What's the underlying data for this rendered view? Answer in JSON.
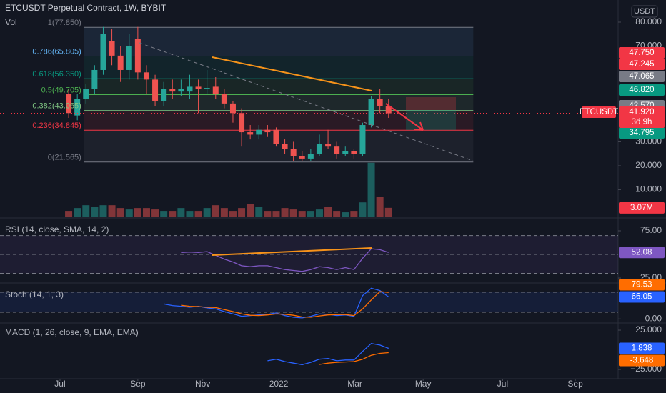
{
  "chart_data": [
    {
      "type": "candlestick",
      "title": "ETCUSDT Perpetual Contract, 1W, BYBIT",
      "currency": "USDT",
      "x": [
        1,
        2,
        3,
        4,
        5,
        6,
        7,
        8,
        9,
        10,
        11,
        12,
        13,
        14,
        15,
        16,
        17,
        18,
        19,
        20,
        21,
        22,
        23,
        24,
        25,
        26,
        27,
        28,
        29,
        30,
        31,
        32,
        33,
        34,
        35,
        36,
        37,
        38
      ],
      "open": [
        50,
        41,
        48,
        52,
        60,
        72,
        66,
        60,
        73,
        59,
        56,
        47,
        52,
        51,
        51,
        53,
        52,
        53,
        50,
        46,
        42,
        34,
        33,
        35,
        35,
        29,
        27,
        24,
        23,
        25,
        29,
        28,
        25,
        26,
        25,
        37,
        48,
        45
      ],
      "high": [
        52,
        50,
        54,
        62,
        78,
        77,
        70,
        75,
        78,
        62,
        58,
        55,
        56,
        56,
        58,
        56,
        60,
        57,
        52,
        47,
        44,
        37,
        37,
        37,
        36,
        31,
        30,
        26,
        27,
        33,
        35,
        30,
        28,
        27,
        38,
        49,
        52,
        48
      ],
      "low": [
        40,
        39,
        46,
        50,
        58,
        62,
        55,
        56,
        56,
        50,
        45,
        45,
        48,
        49,
        48,
        42,
        50,
        48,
        44,
        38,
        28,
        31,
        31,
        32,
        28,
        25,
        22,
        22,
        22,
        24,
        27,
        23,
        24,
        23,
        24,
        36,
        42,
        40
      ],
      "close": [
        42,
        48,
        52,
        60,
        75,
        66,
        60,
        70,
        59,
        56,
        47,
        52,
        51,
        52,
        53,
        52,
        52.5,
        50,
        46,
        42,
        34,
        33,
        35,
        34,
        29,
        27,
        24,
        23,
        25,
        29,
        28,
        25,
        26,
        25,
        37,
        48,
        45,
        41.92
      ],
      "up_color": "#26a69a",
      "down_color": "#ef5350",
      "xlim": [
        -6.94,
        64.55
      ],
      "xticks": [
        {
          "value": 0,
          "label": "Jul"
        },
        {
          "value": 9,
          "label": "Sep"
        },
        {
          "value": 16.5,
          "label": "Nov"
        },
        {
          "value": 25.3,
          "label": "2022"
        },
        {
          "value": 34.1,
          "label": "Mar"
        },
        {
          "value": 42,
          "label": "May"
        },
        {
          "value": 51.2,
          "label": "Jul"
        },
        {
          "value": 59.6,
          "label": "Sep"
        }
      ],
      "ylim": [
        -1.8,
        89.25
      ],
      "yticks": [
        {
          "value": 80,
          "label": "80.000"
        },
        {
          "value": 70,
          "label": "70.000"
        },
        {
          "value": 30,
          "label": "30.000"
        },
        {
          "value": 20,
          "label": "20.000"
        },
        {
          "value": 10,
          "label": "10.000"
        }
      ],
      "fib_x": [
        2.8,
        47.8
      ],
      "fib_levels": [
        {
          "value": 77.85,
          "label": "1(77.850)",
          "color": "#787b86"
        },
        {
          "value": 65.805,
          "label": "0.786(65.805)",
          "color": "#64b5f6"
        },
        {
          "value": 56.35,
          "label": "0.618(56.350)",
          "color": "#089981"
        },
        {
          "value": 49.705,
          "label": "0.5(49.705)",
          "color": "#4caf50"
        },
        {
          "value": 43.065,
          "label": "0.382(43.065)",
          "color": "#81c784"
        },
        {
          "value": 34.845,
          "label": "0.236(34.845)",
          "color": "#f23645"
        },
        {
          "value": 21.565,
          "label": "0(21.565)",
          "color": "#787b86"
        }
      ],
      "price_tags": [
        {
          "label": "47.750",
          "color": "#f23645"
        },
        {
          "label": "47.245",
          "color": "#f23645"
        },
        {
          "label": "47.065",
          "color": "#787b86"
        },
        {
          "label": "46.820",
          "color": "#089981"
        },
        {
          "label": "42.570",
          "color": "#787b86"
        },
        {
          "label": "34.795",
          "color": "#089981"
        }
      ],
      "last_tag": {
        "symbol": "ETCUSDT",
        "price": "41.920",
        "countdown": "3d 9h",
        "color": "#f23645"
      }
    },
    {
      "type": "bar",
      "title": "Vol",
      "x": [
        1,
        2,
        3,
        4,
        5,
        6,
        7,
        8,
        9,
        10,
        11,
        12,
        13,
        14,
        15,
        16,
        17,
        18,
        19,
        20,
        21,
        22,
        23,
        24,
        25,
        26,
        27,
        28,
        29,
        30,
        31,
        32,
        33,
        34,
        35,
        36,
        37,
        38
      ],
      "values": [
        2,
        3,
        4,
        3.5,
        4,
        4,
        3,
        2.5,
        3,
        3,
        2.5,
        2,
        2,
        3,
        2,
        2,
        3,
        4,
        3,
        2,
        3,
        4.5,
        3.5,
        2,
        2,
        3,
        2.5,
        2,
        2,
        2.5,
        3.5,
        2,
        1.5,
        2,
        5,
        19,
        7,
        3.07
      ],
      "value_labels": [
        null,
        null,
        null,
        null,
        null,
        null,
        null,
        null,
        null,
        null,
        null,
        null,
        null,
        null,
        null,
        null,
        null,
        null,
        null,
        null,
        null,
        null,
        null,
        null,
        null,
        null,
        null,
        null,
        null,
        null,
        null,
        null,
        null,
        null,
        null,
        null,
        null,
        "3.07M"
      ],
      "up_color": "#26a69a",
      "down_color": "#ef5350",
      "tag_color": "#f23645",
      "ylim": [
        0,
        24
      ]
    },
    {
      "type": "line",
      "title": "RSI (14, close, SMA, 14, 2)",
      "x": [
        1,
        2,
        3,
        4,
        5,
        6,
        7,
        8,
        9,
        10,
        11,
        12,
        13,
        14,
        15,
        16,
        17,
        18,
        19,
        20,
        21,
        22,
        23,
        24,
        25,
        26,
        27,
        28,
        29,
        30,
        31,
        32,
        33,
        34,
        35,
        36,
        37,
        38
      ],
      "series": [
        {
          "color": "#7e57c2",
          "values": [
            null,
            null,
            null,
            null,
            null,
            null,
            null,
            null,
            null,
            null,
            null,
            null,
            null,
            52,
            52.5,
            52,
            53,
            49,
            45,
            42,
            38,
            37,
            38,
            38,
            36,
            34,
            33,
            32,
            34,
            37,
            36,
            34,
            36,
            34,
            46,
            56,
            55,
            52.08
          ]
        }
      ],
      "levels": [
        70,
        50,
        30
      ],
      "band_color": "#7e57c2",
      "ylim": [
        20.5,
        87.1
      ],
      "yticks": [
        {
          "value": 75,
          "label": "75.00"
        },
        {
          "value": 25,
          "label": "25.00"
        }
      ]
    },
    {
      "type": "line",
      "title": "Stoch (14, 1, 3)",
      "x": [
        1,
        2,
        3,
        4,
        5,
        6,
        7,
        8,
        9,
        10,
        11,
        12,
        13,
        14,
        15,
        16,
        17,
        18,
        19,
        20,
        21,
        22,
        23,
        24,
        25,
        26,
        27,
        28,
        29,
        30,
        31,
        32,
        33,
        34,
        35,
        36,
        37,
        38
      ],
      "series": [
        {
          "color": "#2962ff",
          "values": [
            null,
            null,
            null,
            null,
            null,
            null,
            null,
            null,
            null,
            null,
            null,
            45,
            40,
            38,
            35,
            38,
            33,
            30,
            22,
            15,
            8,
            10,
            12,
            14,
            18,
            10,
            5,
            3,
            8,
            15,
            14,
            10,
            12,
            8,
            70,
            92,
            85,
            66.05
          ]
        },
        {
          "color": "#ff6d00",
          "values": [
            null,
            null,
            null,
            null,
            null,
            null,
            null,
            null,
            null,
            null,
            null,
            null,
            null,
            41,
            38,
            37,
            35,
            34,
            28,
            22,
            15,
            11,
            10,
            12,
            15,
            14,
            11,
            6,
            5,
            9,
            12,
            13,
            13,
            10,
            30,
            57,
            82,
            79.53
          ]
        }
      ],
      "levels": [
        80,
        20
      ],
      "band_color": "#2962ff",
      "ylim": [
        -12.2,
        105.6
      ],
      "yticks": [
        {
          "value": 0,
          "label": "0.00"
        }
      ]
    },
    {
      "type": "line",
      "title": "MACD (1, 26, close, 9, EMA, EMA)",
      "x": [
        1,
        2,
        3,
        4,
        5,
        6,
        7,
        8,
        9,
        10,
        11,
        12,
        13,
        14,
        15,
        16,
        17,
        18,
        19,
        20,
        21,
        22,
        23,
        24,
        25,
        26,
        27,
        28,
        29,
        30,
        31,
        32,
        33,
        34,
        35,
        36,
        37,
        38
      ],
      "series": [
        {
          "color": "#2962ff",
          "values": [
            null,
            null,
            null,
            null,
            null,
            null,
            null,
            null,
            null,
            null,
            null,
            null,
            null,
            null,
            null,
            null,
            null,
            null,
            null,
            null,
            null,
            null,
            null,
            -14,
            -12,
            -15,
            -17,
            -19,
            -16,
            -12,
            -11,
            -14,
            -13,
            -13,
            -2,
            8,
            6,
            1.838
          ]
        },
        {
          "color": "#ff6d00",
          "values": [
            null,
            null,
            null,
            null,
            null,
            null,
            null,
            null,
            null,
            null,
            null,
            null,
            null,
            null,
            null,
            null,
            null,
            null,
            null,
            null,
            null,
            null,
            null,
            null,
            null,
            null,
            null,
            null,
            null,
            -18.6,
            -17,
            -16,
            -15.5,
            -15,
            -12,
            -7,
            -4.5,
            -3.648
          ]
        }
      ],
      "ylim": [
        -36.8,
        32.3
      ],
      "yticks": [
        {
          "value": 25,
          "label": "25.000"
        },
        {
          "value": -25,
          "label": "−25.000"
        }
      ]
    }
  ]
}
